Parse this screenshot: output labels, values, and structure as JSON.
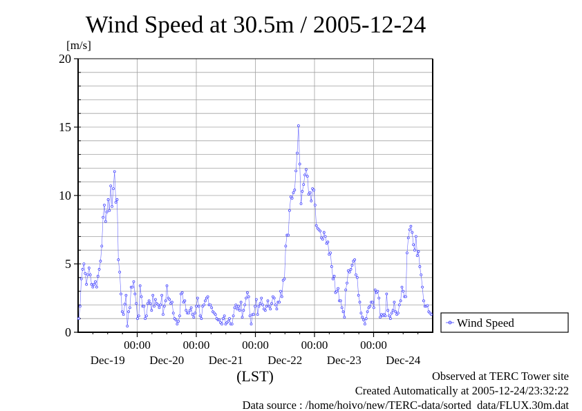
{
  "chart_data": {
    "type": "line",
    "title": "Wind Speed at 30.5m / 2005-12-24",
    "ylabel": "[m/s]",
    "xlabel": "(LST)",
    "ylim": [
      0,
      20
    ],
    "y_ticks": [
      "0",
      "5",
      "10",
      "15",
      "20"
    ],
    "y_tick_values": [
      0,
      5,
      10,
      15,
      20
    ],
    "x_range": [
      "2005-12-19 00:00",
      "2005-12-25 00:00"
    ],
    "x_time_labels": [
      "00:00",
      "00:00",
      "00:00",
      "00:00",
      "00:00"
    ],
    "x_date_labels": [
      "Dec-19",
      "Dec-20",
      "Dec-21",
      "Dec-22",
      "Dec-23",
      "Dec-24"
    ],
    "grid": true,
    "legend_position": "right",
    "series": [
      {
        "name": "Wind Speed",
        "color": "#4040ff",
        "values": [
          1.0,
          1.9,
          3.9,
          4.6,
          5.0,
          4.3,
          3.5,
          4.2,
          4.7,
          4.2,
          3.5,
          3.3,
          3.5,
          3.7,
          3.3,
          4.1,
          4.6,
          5.2,
          6.3,
          8.4,
          9.3,
          8.1,
          8.8,
          9.7,
          8.9,
          10.7,
          9.2,
          10.5,
          11.75,
          9.5,
          9.7,
          5.3,
          4.4,
          2.8,
          1.5,
          1.3,
          2.05,
          2.7,
          0.45,
          1.5,
          1.8,
          3.3,
          3.3,
          3.7,
          2.8,
          2.1,
          1.0,
          1.2,
          3.4,
          2.6,
          1.9,
          1.9,
          1.0,
          1.2,
          2.1,
          2.3,
          2.1,
          1.6,
          2.7,
          1.9,
          2.4,
          2.1,
          2.0,
          1.8,
          2.0,
          2.7,
          1.3,
          1.9,
          2.3,
          3.4,
          2.5,
          2.4,
          2.1,
          2.2,
          1.4,
          1.0,
          0.9,
          0.6,
          0.8,
          1.2,
          2.8,
          2.9,
          2.2,
          2.3,
          1.6,
          1.4,
          1.4,
          1.6,
          1.8,
          1.3,
          1.1,
          1.4,
          1.9,
          2.5,
          1.9,
          1.2,
          1.0,
          1.9,
          2.0,
          2.3,
          2.5,
          2.6,
          2.0,
          2.0,
          1.8,
          1.5,
          1.4,
          1.3,
          1.0,
          0.9,
          0.9,
          0.7,
          0.6,
          1.0,
          1.2,
          0.6,
          0.7,
          0.8,
          1.0,
          0.6,
          0.6,
          1.2,
          1.8,
          2.0,
          1.7,
          1.9,
          1.6,
          2.2,
          1.1,
          1.6,
          2.0,
          2.5,
          2.9,
          2.6,
          1.2,
          0.6,
          1.3,
          1.3,
          1.9,
          2.4,
          1.3,
          1.9,
          2.1,
          2.5,
          2.0,
          1.7,
          1.6,
          1.9,
          2.3,
          1.9,
          1.7,
          2.1,
          2.6,
          2.5,
          2.0,
          1.7,
          2.2,
          2.2,
          3.0,
          2.6,
          3.8,
          3.9,
          6.3,
          7.1,
          7.1,
          8.9,
          9.9,
          9.8,
          10.2,
          10.4,
          11.8,
          13.1,
          15.1,
          12.3,
          9.4,
          10.3,
          10.8,
          11.5,
          11.9,
          11.4,
          10.1,
          10.2,
          9.6,
          10.5,
          10.4,
          9.3,
          7.8,
          7.6,
          7.5,
          7.4,
          6.9,
          6.8,
          7.3,
          7.0,
          6.5,
          6.6,
          5.7,
          5.8,
          4.8,
          3.9,
          4.1,
          2.9,
          3.0,
          3.2,
          2.3,
          2.3,
          1.8,
          1.5,
          1.1,
          3.1,
          3.6,
          4.5,
          4.4,
          4.6,
          4.9,
          5.2,
          5.3,
          4.2,
          4.0,
          2.7,
          2.2,
          1.4,
          1.1,
          0.9,
          0.6,
          1.0,
          1.5,
          1.8,
          1.9,
          2.2,
          2.2,
          1.8,
          3.1,
          2.9,
          3.0,
          2.5,
          1.1,
          1.3,
          1.2,
          1.3,
          1.2,
          2.8,
          1.6,
          1.2,
          1.0,
          1.4,
          1.6,
          2.2,
          1.5,
          1.3,
          1.4,
          2.0,
          2.3,
          3.3,
          3.0,
          2.6,
          2.6,
          5.8,
          6.9,
          7.5,
          7.75,
          7.3,
          6.4,
          6.0,
          7.0,
          5.6,
          5.9,
          4.8,
          4.2,
          3.3,
          2.3,
          1.9,
          1.9,
          1.95,
          1.5,
          1.4,
          1.3
        ]
      }
    ]
  },
  "footer": {
    "observed": "Observed at TERC Tower site",
    "created": "Created Automatically at 2005-12-24/23:32:22",
    "source": "Data source : /home/hoivo/new/TERC-data/sorted  data/FLUX.30m.dat"
  }
}
